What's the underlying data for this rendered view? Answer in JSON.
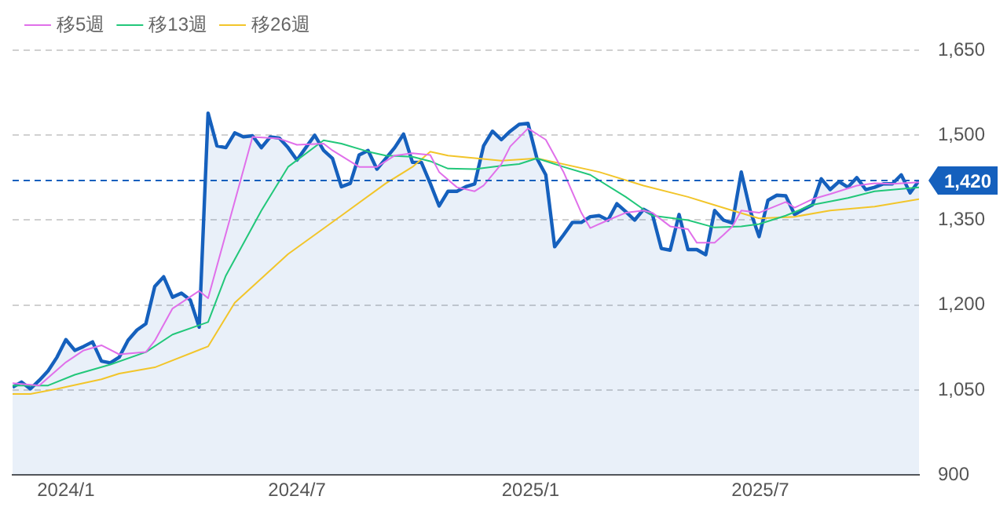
{
  "chart_data": {
    "type": "line",
    "x": [
      "2023-11-20",
      "2023-11-27",
      "2023-12-04",
      "2023-12-11",
      "2023-12-18",
      "2023-12-25",
      "2024-01-01",
      "2024-01-08",
      "2024-01-15",
      "2024-01-22",
      "2024-01-29",
      "2024-02-05",
      "2024-02-12",
      "2024-02-19",
      "2024-02-26",
      "2024-03-04",
      "2024-03-11",
      "2024-03-18",
      "2024-03-25",
      "2024-04-01",
      "2024-04-08",
      "2024-04-15",
      "2024-04-22",
      "2024-04-29",
      "2024-05-06",
      "2024-05-13",
      "2024-05-20",
      "2024-05-27",
      "2024-06-03",
      "2024-06-10",
      "2024-06-17",
      "2024-06-24",
      "2024-07-01",
      "2024-07-08",
      "2024-07-15",
      "2024-07-22",
      "2024-07-29",
      "2024-08-05",
      "2024-08-12",
      "2024-08-19",
      "2024-08-26",
      "2024-09-02",
      "2024-09-09",
      "2024-09-16",
      "2024-09-23",
      "2024-09-30",
      "2024-10-07",
      "2024-10-14",
      "2024-10-21",
      "2024-10-28",
      "2024-11-04",
      "2024-11-11",
      "2024-11-18",
      "2024-11-25",
      "2024-12-02",
      "2024-12-09",
      "2024-12-16",
      "2024-12-23",
      "2024-12-30",
      "2025-01-06",
      "2025-01-13",
      "2025-01-20",
      "2025-01-27",
      "2025-02-03",
      "2025-02-10",
      "2025-02-17",
      "2025-02-24",
      "2025-03-03",
      "2025-03-10",
      "2025-03-17",
      "2025-03-24",
      "2025-03-31",
      "2025-04-07",
      "2025-04-14",
      "2025-04-21",
      "2025-04-28",
      "2025-05-05",
      "2025-05-12",
      "2025-05-19",
      "2025-05-26",
      "2025-06-02",
      "2025-06-09",
      "2025-06-16",
      "2025-06-23",
      "2025-06-30",
      "2025-07-07",
      "2025-07-14",
      "2025-07-21",
      "2025-07-28",
      "2025-08-04",
      "2025-08-11",
      "2025-08-18",
      "2025-08-25",
      "2025-09-01",
      "2025-09-08",
      "2025-09-15",
      "2025-09-22",
      "2025-09-29",
      "2025-10-06",
      "2025-10-13",
      "2025-10-20",
      "2025-10-27",
      "2025-11-03"
    ],
    "xlim": [
      "2023-11-20",
      "2025-11-03"
    ],
    "xticks": [
      {
        "value": "2024-01-01",
        "label": "2024/1"
      },
      {
        "value": "2024-07-01",
        "label": "2024/7"
      },
      {
        "value": "2025-01-01",
        "label": "2025/1"
      },
      {
        "value": "2025-07-01",
        "label": "2025/7"
      }
    ],
    "ylim": [
      900,
      1650
    ],
    "yticks": [
      {
        "value": 900,
        "label": "900"
      },
      {
        "value": 1050,
        "label": "1,050"
      },
      {
        "value": 1200,
        "label": "1,200"
      },
      {
        "value": 1350,
        "label": "1,350"
      },
      {
        "value": 1500,
        "label": "1,500"
      },
      {
        "value": 1650,
        "label": "1,650"
      }
    ],
    "grid": "y",
    "legend": "top left",
    "marker": "none",
    "series": [
      {
        "type": "area",
        "color": "#1560bd",
        "values": [
          1055,
          1064,
          1052,
          1067,
          1084,
          1108,
          1139,
          1120,
          1127,
          1135,
          1101,
          1098,
          1108,
          1138,
          1156,
          1167,
          1233,
          1250,
          1214,
          1221,
          1209,
          1161,
          1539,
          1481,
          1478,
          1504,
          1497,
          1499,
          1478,
          1497,
          1495,
          1478,
          1456,
          1478,
          1500,
          1473,
          1459,
          1409,
          1415,
          1465,
          1473,
          1440,
          1459,
          1478,
          1502,
          1452,
          1452,
          1415,
          1375,
          1401,
          1401,
          1409,
          1414,
          1481,
          1507,
          1492,
          1507,
          1519,
          1521,
          1459,
          1430,
          1303,
          1324,
          1346,
          1346,
          1356,
          1358,
          1350,
          1379,
          1365,
          1350,
          1369,
          1360,
          1300,
          1297,
          1360,
          1298,
          1298,
          1289,
          1367,
          1350,
          1345,
          1435,
          1367,
          1321,
          1385,
          1394,
          1393,
          1360,
          1369,
          1377,
          1423,
          1404,
          1418,
          1408,
          1425,
          1404,
          1408,
          1414,
          1414,
          1430,
          1398,
          1420
        ]
      },
      {
        "name": "移5週",
        "color": "#e070ea",
        "x": [
          "2023-11-20",
          "2023-12-11",
          "2024-01-01",
          "2024-01-15",
          "2024-01-29",
          "2024-02-12",
          "2024-03-04",
          "2024-03-11",
          "2024-03-25",
          "2024-04-15",
          "2024-04-22",
          "2024-05-27",
          "2024-06-17",
          "2024-07-01",
          "2024-07-22",
          "2024-07-29",
          "2024-08-19",
          "2024-09-02",
          "2024-09-16",
          "2024-09-30",
          "2024-10-14",
          "2024-10-21",
          "2024-11-04",
          "2024-11-18",
          "2024-11-25",
          "2024-12-09",
          "2024-12-16",
          "2024-12-30",
          "2025-01-13",
          "2025-01-27",
          "2025-02-10",
          "2025-02-17",
          "2025-03-03",
          "2025-03-17",
          "2025-03-31",
          "2025-04-07",
          "2025-04-21",
          "2025-05-05",
          "2025-05-12",
          "2025-05-26",
          "2025-06-02",
          "2025-06-09",
          "2025-06-16",
          "2025-06-30",
          "2025-07-21",
          "2025-07-28",
          "2025-08-11",
          "2025-08-25",
          "2025-09-15",
          "2025-09-29",
          "2025-10-13",
          "2025-11-03"
        ],
        "values": [
          1062,
          1058,
          1099,
          1120,
          1129,
          1113,
          1117,
          1137,
          1194,
          1225,
          1212,
          1497,
          1494,
          1483,
          1485,
          1473,
          1444,
          1444,
          1464,
          1468,
          1465,
          1435,
          1408,
          1401,
          1411,
          1449,
          1480,
          1512,
          1492,
          1435,
          1363,
          1336,
          1350,
          1363,
          1367,
          1363,
          1339,
          1334,
          1310,
          1310,
          1324,
          1339,
          1367,
          1363,
          1382,
          1372,
          1387,
          1396,
          1411,
          1415,
          1414,
          1417
        ]
      },
      {
        "name": "移13週",
        "color": "#22c77a",
        "x": [
          "2023-11-20",
          "2023-12-18",
          "2024-01-08",
          "2024-02-05",
          "2024-03-04",
          "2024-03-25",
          "2024-04-22",
          "2024-05-06",
          "2024-06-03",
          "2024-06-24",
          "2024-07-22",
          "2024-08-05",
          "2024-08-26",
          "2024-09-09",
          "2024-09-30",
          "2024-10-14",
          "2024-10-28",
          "2024-11-18",
          "2024-12-09",
          "2024-12-23",
          "2025-01-06",
          "2025-01-27",
          "2025-02-17",
          "2025-03-17",
          "2025-04-07",
          "2025-05-05",
          "2025-05-26",
          "2025-06-16",
          "2025-06-30",
          "2025-07-21",
          "2025-08-11",
          "2025-09-08",
          "2025-09-29",
          "2025-11-03"
        ],
        "values": [
          1058,
          1058,
          1077,
          1095,
          1117,
          1148,
          1170,
          1252,
          1367,
          1444,
          1491,
          1485,
          1471,
          1464,
          1462,
          1454,
          1441,
          1440,
          1446,
          1449,
          1459,
          1444,
          1430,
          1391,
          1358,
          1350,
          1337,
          1339,
          1343,
          1358,
          1377,
          1389,
          1401,
          1408
        ]
      },
      {
        "name": "移26週",
        "color": "#f2c52a",
        "x": [
          "2023-11-20",
          "2023-12-04",
          "2023-12-25",
          "2024-01-29",
          "2024-02-12",
          "2024-03-11",
          "2024-04-22",
          "2024-05-13",
          "2024-06-24",
          "2024-08-05",
          "2024-09-09",
          "2024-09-30",
          "2024-10-14",
          "2024-10-28",
          "2024-12-09",
          "2025-01-06",
          "2025-02-24",
          "2025-03-31",
          "2025-05-05",
          "2025-06-09",
          "2025-06-30",
          "2025-07-28",
          "2025-08-25",
          "2025-09-29",
          "2025-11-03"
        ],
        "values": [
          1043,
          1043,
          1052,
          1069,
          1079,
          1090,
          1127,
          1204,
          1290,
          1358,
          1415,
          1444,
          1471,
          1464,
          1455,
          1459,
          1435,
          1411,
          1391,
          1367,
          1353,
          1356,
          1367,
          1374,
          1387
        ]
      }
    ],
    "ref_lines": [
      {
        "axis": "y",
        "value": 1420,
        "label": "1,420",
        "color": "#1560bd",
        "line_style": "dashed"
      }
    ]
  }
}
